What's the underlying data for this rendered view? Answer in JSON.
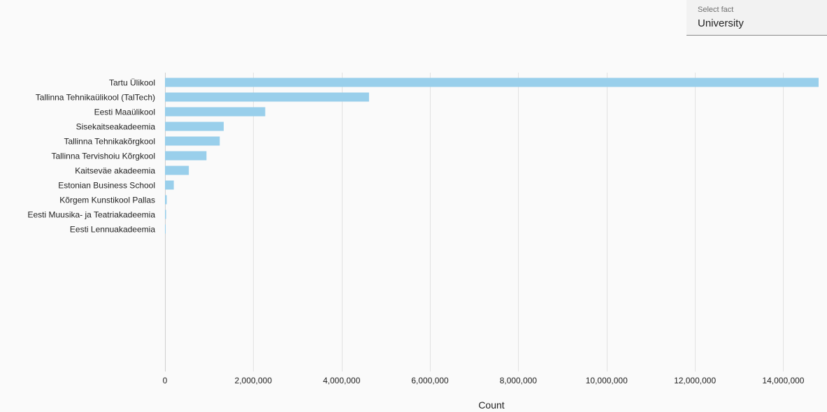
{
  "selector": {
    "label": "Select fact",
    "value": "University"
  },
  "colors": {
    "bar": "#99cfeb",
    "grid": "#e2e2e2",
    "axis_text": "#222222",
    "background": "#fafafa"
  },
  "chart_data": {
    "type": "bar",
    "orientation": "horizontal",
    "categories": [
      "Tartu Ülikool",
      "Tallinna Tehnikaülikool (TalTech)",
      "Eesti Maaülikool",
      "Sisekaitseakadeemia",
      "Tallinna Tehnikakõrgkool",
      "Tallinna Tervishoiu Kõrgkool",
      "Kaitseväe akadeemia",
      "Estonian Business School",
      "Kõrgem Kunstikool Pallas",
      "Eesti Muusika- ja Teatriakadeemia",
      "Eesti Lennuakadeemia"
    ],
    "values": [
      14800000,
      4620000,
      2270000,
      1330000,
      1240000,
      940000,
      540000,
      200000,
      40000,
      25000,
      10000
    ],
    "xlabel": "Count",
    "ylabel": "",
    "xlim": [
      0,
      14800000
    ],
    "xticks": [
      0,
      2000000,
      4000000,
      6000000,
      8000000,
      10000000,
      12000000,
      14000000
    ],
    "xtick_labels": [
      "0",
      "2,000,000",
      "4,000,000",
      "6,000,000",
      "8,000,000",
      "10,000,000",
      "12,000,000",
      "14,000,000"
    ],
    "grid": true
  }
}
